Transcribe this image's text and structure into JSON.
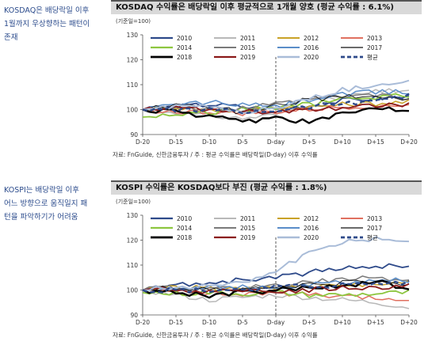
{
  "left_notes": [
    "KOSDAQ은 배당락일 이후\n1월까지 우상향하는 패턴이\n존재",
    "KOSPI는 배당락일 이후\n어느 방향으로 움직일지 패\n턴을 파악하기가 어려움"
  ],
  "chart_data": [
    {
      "type": "line",
      "title": "KOSDAQ 수익률은 배당락일 이후 평균적으로 1개월 양호 (평균 수익률 : 6.1%)",
      "unit": "(기준일=100)",
      "ylim": [
        90,
        130
      ],
      "yticks": [
        90,
        100,
        110,
        120,
        130
      ],
      "xtick_labels": [
        "D-20",
        "D-15",
        "D-10",
        "D-5",
        "D-day",
        "D+5",
        "D+10",
        "D+15",
        "D+20"
      ],
      "x_range": [
        -20,
        20
      ],
      "marker_x": 0,
      "source": "자료: FnGuide, 신한금융투자 / 주 : 평균 수익률은 배당락일(D-day) 이후 수익률",
      "series": [
        {
          "name": "2010",
          "color": "#2e4a8a",
          "width": 1.8,
          "anchors": [
            [
              -20,
              100
            ],
            [
              -15,
              101
            ],
            [
              -10,
              102
            ],
            [
              -5,
              101
            ],
            [
              0,
              100
            ],
            [
              5,
              101.5
            ],
            [
              10,
              103.5
            ],
            [
              15,
              104.5
            ],
            [
              20,
              105
            ]
          ]
        },
        {
          "name": "2011",
          "color": "#b8b8b8",
          "width": 1.5,
          "anchors": [
            [
              -20,
              100
            ],
            [
              -15,
              99
            ],
            [
              -10,
              97.5
            ],
            [
              -5,
              96.5
            ],
            [
              0,
              98
            ],
            [
              5,
              102
            ],
            [
              10,
              105
            ],
            [
              15,
              107
            ],
            [
              20,
              108
            ]
          ]
        },
        {
          "name": "2012",
          "color": "#c9a227",
          "width": 1.5,
          "anchors": [
            [
              -20,
              100
            ],
            [
              -15,
              101
            ],
            [
              -10,
              100
            ],
            [
              -5,
              99.5
            ],
            [
              0,
              101
            ],
            [
              5,
              101
            ],
            [
              10,
              102
            ],
            [
              15,
              102.5
            ],
            [
              20,
              103
            ]
          ]
        },
        {
          "name": "2013",
          "color": "#e07060",
          "width": 1.5,
          "anchors": [
            [
              -20,
              100
            ],
            [
              -15,
              99
            ],
            [
              -10,
              99
            ],
            [
              -5,
              98.5
            ],
            [
              0,
              99
            ],
            [
              5,
              100
            ],
            [
              10,
              101
            ],
            [
              15,
              101.5
            ],
            [
              20,
              102
            ]
          ]
        },
        {
          "name": "2014",
          "color": "#8dc63f",
          "width": 1.8,
          "anchors": [
            [
              -20,
              97
            ],
            [
              -15,
              98
            ],
            [
              -10,
              99
            ],
            [
              -5,
              100
            ],
            [
              0,
              101
            ],
            [
              5,
              102
            ],
            [
              10,
              104
            ],
            [
              15,
              105
            ],
            [
              20,
              106
            ]
          ]
        },
        {
          "name": "2015",
          "color": "#7a7a7a",
          "width": 1.5,
          "anchors": [
            [
              -20,
              100
            ],
            [
              -15,
              101
            ],
            [
              -10,
              100
            ],
            [
              -5,
              100.5
            ],
            [
              0,
              102
            ],
            [
              5,
              104
            ],
            [
              10,
              105
            ],
            [
              15,
              106
            ],
            [
              20,
              104
            ]
          ]
        },
        {
          "name": "2016",
          "color": "#5a8dc8",
          "width": 1.5,
          "anchors": [
            [
              -20,
              100
            ],
            [
              -15,
              102
            ],
            [
              -10,
              103
            ],
            [
              -5,
              102
            ],
            [
              0,
              101
            ],
            [
              5,
              104
            ],
            [
              10,
              106
            ],
            [
              15,
              107
            ],
            [
              20,
              107
            ]
          ]
        },
        {
          "name": "2017",
          "color": "#111111",
          "width": 0.9,
          "anchors": [
            [
              -20,
              100
            ],
            [
              -15,
              102
            ],
            [
              -10,
              101
            ],
            [
              -5,
              99
            ],
            [
              0,
              102
            ],
            [
              5,
              104
            ],
            [
              10,
              105
            ],
            [
              15,
              106
            ],
            [
              20,
              104
            ]
          ]
        },
        {
          "name": "2018",
          "color": "#000000",
          "width": 2.4,
          "anchors": [
            [
              -20,
              100
            ],
            [
              -15,
              99
            ],
            [
              -10,
              97
            ],
            [
              -5,
              95
            ],
            [
              0,
              97
            ],
            [
              5,
              95
            ],
            [
              10,
              98
            ],
            [
              15,
              101
            ],
            [
              20,
              100
            ]
          ]
        },
        {
          "name": "2019",
          "color": "#8b1a1a",
          "width": 1.8,
          "anchors": [
            [
              -20,
              100
            ],
            [
              -15,
              100.5
            ],
            [
              -10,
              100
            ],
            [
              -5,
              99
            ],
            [
              0,
              99
            ],
            [
              5,
              99.5
            ],
            [
              10,
              101
            ],
            [
              15,
              101.5
            ],
            [
              20,
              102
            ]
          ]
        },
        {
          "name": "2020",
          "color": "#a9bcd8",
          "width": 2.0,
          "anchors": [
            [
              -20,
              100
            ],
            [
              -15,
              101
            ],
            [
              -10,
              101.5
            ],
            [
              -5,
              99
            ],
            [
              0,
              101
            ],
            [
              5,
              104
            ],
            [
              10,
              108
            ],
            [
              15,
              110
            ],
            [
              20,
              112
            ]
          ]
        },
        {
          "name": "평균",
          "color": "#2e4a8a",
          "width": 2.4,
          "dash": "6,4",
          "anchors": [
            [
              -20,
              100
            ],
            [
              -15,
              100
            ],
            [
              -10,
              99.8
            ],
            [
              -5,
              99
            ],
            [
              0,
              99.7
            ],
            [
              5,
              101
            ],
            [
              10,
              102.5
            ],
            [
              15,
              104
            ],
            [
              20,
              105.5
            ]
          ]
        }
      ]
    },
    {
      "type": "line",
      "title": "KOSPI 수익률은 KOSDAQ보다 부진 (평균 수익률 : 1.8%)",
      "unit": "(기준일=100)",
      "ylim": [
        90,
        130
      ],
      "yticks": [
        90,
        100,
        110,
        120,
        130
      ],
      "xtick_labels": [
        "D-20",
        "D-15",
        "D-10",
        "D-5",
        "D-day",
        "D+5",
        "D+10",
        "D+15",
        "D+20"
      ],
      "x_range": [
        -20,
        20
      ],
      "marker_x": 0,
      "source": "자료: FnGuide, 신한금융투자 / 주 : 평균 수익률은 배당락일(D-day) 이후 수익률",
      "series": [
        {
          "name": "2010",
          "color": "#2e4a8a",
          "width": 1.8,
          "anchors": [
            [
              -20,
              100
            ],
            [
              -15,
              102
            ],
            [
              -10,
              103
            ],
            [
              -5,
              104
            ],
            [
              0,
              105
            ],
            [
              5,
              107
            ],
            [
              10,
              108.5
            ],
            [
              15,
              110
            ],
            [
              20,
              109
            ]
          ]
        },
        {
          "name": "2011",
          "color": "#b8b8b8",
          "width": 1.5,
          "anchors": [
            [
              -20,
              100
            ],
            [
              -15,
              98
            ],
            [
              -10,
              96
            ],
            [
              -5,
              97
            ],
            [
              0,
              98
            ],
            [
              5,
              97
            ],
            [
              10,
              96
            ],
            [
              15,
              95
            ],
            [
              20,
              93
            ]
          ]
        },
        {
          "name": "2012",
          "color": "#c9a227",
          "width": 1.5,
          "anchors": [
            [
              -20,
              100
            ],
            [
              -15,
              101
            ],
            [
              -10,
              101
            ],
            [
              -5,
              100.5
            ],
            [
              0,
              101
            ],
            [
              5,
              101
            ],
            [
              10,
              102
            ],
            [
              15,
              102.5
            ],
            [
              20,
              103
            ]
          ]
        },
        {
          "name": "2013",
          "color": "#e07060",
          "width": 1.5,
          "anchors": [
            [
              -20,
              100
            ],
            [
              -15,
              99
            ],
            [
              -10,
              98.5
            ],
            [
              -5,
              98
            ],
            [
              0,
              99
            ],
            [
              5,
              98
            ],
            [
              10,
              97
            ],
            [
              15,
              96.5
            ],
            [
              20,
              96
            ]
          ]
        },
        {
          "name": "2014",
          "color": "#8dc63f",
          "width": 1.8,
          "anchors": [
            [
              -20,
              99
            ],
            [
              -15,
              98.5
            ],
            [
              -10,
              99
            ],
            [
              -5,
              98.5
            ],
            [
              0,
              99
            ],
            [
              5,
              98
            ],
            [
              10,
              98
            ],
            [
              15,
              98.5
            ],
            [
              20,
              99
            ]
          ]
        },
        {
          "name": "2015",
          "color": "#7a7a7a",
          "width": 1.5,
          "anchors": [
            [
              -20,
              100
            ],
            [
              -15,
              101
            ],
            [
              -10,
              100
            ],
            [
              -5,
              101
            ],
            [
              0,
              102
            ],
            [
              5,
              103
            ],
            [
              10,
              104
            ],
            [
              15,
              105
            ],
            [
              20,
              104
            ]
          ]
        },
        {
          "name": "2016",
          "color": "#5a8dc8",
          "width": 1.5,
          "anchors": [
            [
              -20,
              100
            ],
            [
              -15,
              101
            ],
            [
              -10,
              101.5
            ],
            [
              -5,
              101
            ],
            [
              0,
              100.5
            ],
            [
              5,
              102
            ],
            [
              10,
              103
            ],
            [
              15,
              103.5
            ],
            [
              20,
              104
            ]
          ]
        },
        {
          "name": "2017",
          "color": "#111111",
          "width": 0.9,
          "anchors": [
            [
              -20,
              100
            ],
            [
              -15,
              101
            ],
            [
              -10,
              100.5
            ],
            [
              -5,
              100
            ],
            [
              0,
              101
            ],
            [
              5,
              102
            ],
            [
              10,
              103
            ],
            [
              15,
              103.5
            ],
            [
              20,
              102
            ]
          ]
        },
        {
          "name": "2018",
          "color": "#000000",
          "width": 2.4,
          "anchors": [
            [
              -20,
              100
            ],
            [
              -15,
              99
            ],
            [
              -10,
              98
            ],
            [
              -5,
              99
            ],
            [
              0,
              100
            ],
            [
              5,
              101
            ],
            [
              10,
              102
            ],
            [
              15,
              103
            ],
            [
              20,
              101
            ]
          ]
        },
        {
          "name": "2019",
          "color": "#8b1a1a",
          "width": 1.8,
          "anchors": [
            [
              -20,
              100
            ],
            [
              -15,
              100
            ],
            [
              -10,
              99.5
            ],
            [
              -5,
              99
            ],
            [
              0,
              99.5
            ],
            [
              5,
              100
            ],
            [
              10,
              101
            ],
            [
              15,
              101
            ],
            [
              20,
              102
            ]
          ]
        },
        {
          "name": "2020",
          "color": "#a9bcd8",
          "width": 2.0,
          "anchors": [
            [
              -20,
              100
            ],
            [
              -15,
              101
            ],
            [
              -10,
              102
            ],
            [
              -5,
              103
            ],
            [
              0,
              108
            ],
            [
              5,
              115
            ],
            [
              10,
              119
            ],
            [
              15,
              121
            ],
            [
              20,
              120
            ]
          ]
        },
        {
          "name": "평균",
          "color": "#2e4a8a",
          "width": 2.4,
          "dash": "6,4",
          "anchors": [
            [
              -20,
              100
            ],
            [
              -15,
              100
            ],
            [
              -10,
              100
            ],
            [
              -5,
              100.3
            ],
            [
              0,
              101
            ],
            [
              5,
              101.5
            ],
            [
              10,
              102
            ],
            [
              15,
              102.5
            ],
            [
              20,
              103
            ]
          ]
        }
      ]
    }
  ]
}
